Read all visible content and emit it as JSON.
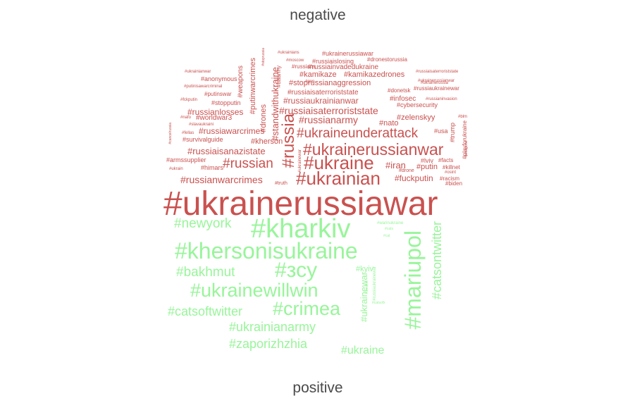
{
  "title_top": "negative",
  "title_bottom": "positive",
  "colors": {
    "negative": "#c9514f",
    "positive": "#98f59a",
    "heading": "#4a4a4a"
  },
  "negative_words": [
    {
      "t": "#ukrainerussiawar",
      "s": 48
    },
    {
      "t": "#ukrainian",
      "s": 26
    },
    {
      "t": "#ukraine",
      "s": 26
    },
    {
      "t": "#ukrainerussianwar",
      "s": 23
    },
    {
      "t": "#russia",
      "s": 24,
      "r": -90
    },
    {
      "t": "#ukraineunderattack",
      "s": 19
    },
    {
      "t": "#russian",
      "s": 19
    },
    {
      "t": "#russianwarcrimes",
      "s": 14
    },
    {
      "t": "#russianarmy",
      "s": 14
    },
    {
      "t": "#standwithukraine",
      "s": 13,
      "r": -90
    },
    {
      "t": "#russiaisaterroriststate",
      "s": 14
    },
    {
      "t": "#russianlosses",
      "s": 12
    },
    {
      "t": "#russiaisanazistate",
      "s": 13
    },
    {
      "t": "#russiawarcrimes",
      "s": 12
    },
    {
      "t": "#iran",
      "s": 13
    },
    {
      "t": "#fuckputin",
      "s": 12
    },
    {
      "t": "#zelenskyy",
      "s": 11
    },
    {
      "t": "#putin",
      "s": 11
    },
    {
      "t": "#russiaukrainianwar",
      "s": 12
    },
    {
      "t": "#stoprussianaggression",
      "s": 11
    },
    {
      "t": "#russiaisaterroriststate",
      "s": 10
    },
    {
      "t": "#kamikazedrones",
      "s": 11
    },
    {
      "t": "#kamikaze",
      "s": 11
    },
    {
      "t": "#russiainvadedukraine",
      "s": 10
    },
    {
      "t": "#putinwarcrimes",
      "s": 11,
      "r": -90
    },
    {
      "t": "#weapons",
      "s": 10,
      "r": -90
    },
    {
      "t": "#drones",
      "s": 11,
      "r": -90
    },
    {
      "t": "#worldwar3",
      "s": 10
    },
    {
      "t": "#kherson",
      "s": 11
    },
    {
      "t": "#survivalguide",
      "s": 9
    },
    {
      "t": "#nato",
      "s": 11
    },
    {
      "t": "#infosec",
      "s": 10
    },
    {
      "t": "#cybersecurity",
      "s": 9
    },
    {
      "t": "#anonymous",
      "s": 9
    },
    {
      "t": "#stopputin",
      "s": 9
    },
    {
      "t": "#himars",
      "s": 9
    },
    {
      "t": "#armssupplier",
      "s": 9
    },
    {
      "t": "#putinswar",
      "s": 8
    },
    {
      "t": "#usa",
      "s": 9
    },
    {
      "t": "#trump",
      "s": 9,
      "r": -90
    },
    {
      "t": "#playforukraine",
      "s": 8,
      "r": -90
    },
    {
      "t": "#russiaukrainewar",
      "s": 8
    },
    {
      "t": "#ukrainerussiawar",
      "s": 9
    },
    {
      "t": "#russiaislosing",
      "s": 9
    },
    {
      "t": "#dronestorussia",
      "s": 8
    },
    {
      "t": "#russians",
      "s": 8
    },
    {
      "t": "#uaarmy",
      "s": 8,
      "r": -90
    },
    {
      "t": "#donetsk",
      "s": 8
    },
    {
      "t": "#lviv",
      "s": 9
    },
    {
      "t": "#facts",
      "s": 8
    },
    {
      "t": "#killnet",
      "s": 8
    },
    {
      "t": "#biden",
      "s": 8
    },
    {
      "t": "#racism",
      "s": 8
    },
    {
      "t": "#truth",
      "s": 7
    },
    {
      "t": "#drone",
      "s": 7
    },
    {
      "t": "#osint",
      "s": 6
    },
    {
      "t": "#ukrainianwar",
      "s": 6
    },
    {
      "t": "#ukrainerussianwar",
      "s": 6
    },
    {
      "t": "#putinisawarcriminal",
      "s": 6
    },
    {
      "t": "#fckputin",
      "s": 6
    },
    {
      "t": "#ukrain",
      "s": 6
    },
    {
      "t": "#nafo",
      "s": 6
    },
    {
      "t": "#slavaukraini",
      "s": 6
    },
    {
      "t": "#fellas",
      "s": 6
    },
    {
      "t": "#cancelrussia",
      "s": 5,
      "r": -90
    },
    {
      "t": "#moscow",
      "s": 6
    },
    {
      "t": "#gop",
      "s": 6
    },
    {
      "t": "#ukrainians",
      "s": 6
    },
    {
      "t": "#stoprussia",
      "s": 5,
      "r": -90
    },
    {
      "t": "#ukrainerussia",
      "s": 6
    },
    {
      "t": "#russianinvasion",
      "s": 6
    },
    {
      "t": "#russiaisaterroriststate",
      "s": 6
    },
    {
      "t": "#blm",
      "s": 6
    },
    {
      "t": "#ukrainewar",
      "s": 6,
      "r": -90
    },
    {
      "t": "#weapons",
      "s": 5,
      "r": -90
    }
  ],
  "positive_words": [
    {
      "t": "#kharkiv",
      "s": 38
    },
    {
      "t": "#khersonisukraine",
      "s": 32
    },
    {
      "t": "#mariupol",
      "s": 32,
      "r": -90
    },
    {
      "t": "#зсу",
      "s": 30
    },
    {
      "t": "#ukrainewillwin",
      "s": 27
    },
    {
      "t": "#crimea",
      "s": 27
    },
    {
      "t": "#catsontwitter",
      "s": 18,
      "r": -90
    },
    {
      "t": "#newyork",
      "s": 19
    },
    {
      "t": "#bakhmut",
      "s": 19
    },
    {
      "t": "#catsoftwitter",
      "s": 18
    },
    {
      "t": "#ukrainianarmy",
      "s": 18
    },
    {
      "t": "#zaporizhzhia",
      "s": 18
    },
    {
      "t": "#ukraine",
      "s": 16
    },
    {
      "t": "#ukrainewar",
      "s": 13,
      "r": -90
    },
    {
      "t": "#kyiv",
      "s": 11
    },
    {
      "t": "#russiaukrainewar",
      "s": 6,
      "r": -90
    },
    {
      "t": "#warinukraine",
      "s": 6
    },
    {
      "t": "#cats",
      "s": 5
    },
    {
      "t": "#cat",
      "s": 5
    },
    {
      "t": "#ukraine",
      "s": 5,
      "r": -90
    },
    {
      "t": "#catsofx",
      "s": 5
    }
  ]
}
